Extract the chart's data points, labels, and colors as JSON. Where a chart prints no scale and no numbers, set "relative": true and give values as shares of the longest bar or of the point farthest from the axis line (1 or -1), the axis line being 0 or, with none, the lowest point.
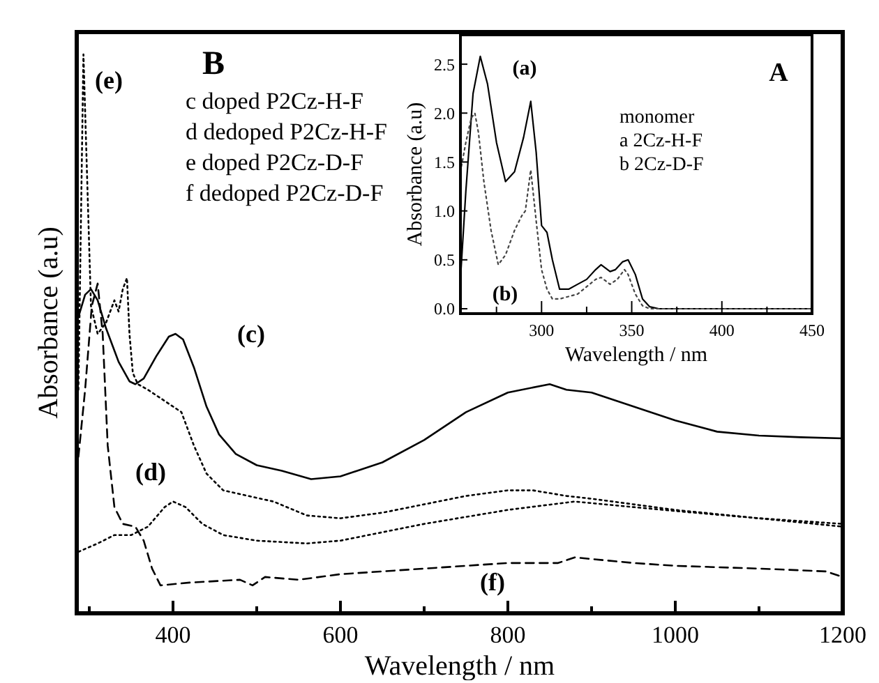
{
  "chart_data": [
    {
      "type": "line",
      "title": "B",
      "xlabel": "Wavelength / nm",
      "ylabel": "Absorbance (a.u)",
      "relative": true,
      "xlim": [
        285,
        1200
      ],
      "xticks": [
        {
          "value": 300,
          "label": null
        },
        400,
        {
          "value": 500,
          "label": null
        },
        600,
        {
          "value": 700,
          "label": null
        },
        800,
        {
          "value": 900,
          "label": null
        },
        1000,
        {
          "value": 1100,
          "label": null
        },
        1200
      ],
      "annotations": [
        "c doped P2Cz-H-F",
        "d dedoped P2Cz-H-F",
        "e doped P2Cz-D-F",
        "f dedoped P2Cz-D-F",
        "(c)",
        "(d)",
        "(e)",
        "(f)"
      ],
      "series": [
        {
          "color": "#000000",
          "line_style": "solid",
          "x": [
            287,
            295,
            302,
            310,
            320,
            335,
            348,
            355,
            365,
            380,
            395,
            403,
            412,
            425,
            440,
            455,
            475,
            500,
            530,
            565,
            600,
            650,
            700,
            750,
            800,
            850,
            870,
            900,
            950,
            1000,
            1050,
            1100,
            1150,
            1200
          ],
          "values": [
            0.53,
            0.57,
            0.58,
            0.56,
            0.51,
            0.45,
            0.415,
            0.41,
            0.42,
            0.46,
            0.495,
            0.5,
            0.49,
            0.44,
            0.37,
            0.32,
            0.285,
            0.265,
            0.255,
            0.24,
            0.245,
            0.27,
            0.31,
            0.36,
            0.395,
            0.41,
            0.4,
            0.395,
            0.37,
            0.345,
            0.325,
            0.318,
            0.315,
            0.313
          ]
        },
        {
          "color": "#000000",
          "line_style": "dotted",
          "x": [
            287,
            310,
            330,
            350,
            370,
            390,
            400,
            415,
            435,
            460,
            500,
            560,
            600,
            700,
            800,
            880,
            950,
            1000,
            1100,
            1200
          ],
          "values": [
            0.11,
            0.125,
            0.14,
            0.14,
            0.155,
            0.19,
            0.2,
            0.19,
            0.16,
            0.14,
            0.13,
            0.125,
            0.13,
            0.16,
            0.185,
            0.2,
            0.19,
            0.183,
            0.17,
            0.16
          ]
        },
        {
          "color": "#000000",
          "line_style": "dotted",
          "x": [
            287,
            290,
            293,
            297,
            302,
            310,
            320,
            330,
            335,
            340,
            345,
            348,
            352,
            358,
            370,
            390,
            410,
            425,
            440,
            460,
            490,
            520,
            560,
            600,
            650,
            700,
            750,
            800,
            830,
            870,
            900,
            1000,
            1100,
            1200
          ],
          "values": [
            0.4,
            0.7,
            1.0,
            0.8,
            0.55,
            0.5,
            0.52,
            0.56,
            0.54,
            0.58,
            0.6,
            0.5,
            0.43,
            0.41,
            0.4,
            0.38,
            0.36,
            0.3,
            0.25,
            0.22,
            0.21,
            0.2,
            0.175,
            0.17,
            0.18,
            0.195,
            0.21,
            0.22,
            0.22,
            0.21,
            0.205,
            0.185,
            0.17,
            0.155
          ]
        },
        {
          "color": "#000000",
          "line_style": "dashed",
          "x": [
            287,
            295,
            303,
            310,
            316,
            322,
            330,
            340,
            355,
            365,
            375,
            385,
            420,
            480,
            495,
            510,
            550,
            600,
            700,
            800,
            860,
            880,
            950,
            1000,
            1100,
            1180,
            1200
          ],
          "values": [
            0.28,
            0.4,
            0.55,
            0.59,
            0.5,
            0.3,
            0.19,
            0.16,
            0.155,
            0.13,
            0.08,
            0.05,
            0.055,
            0.06,
            0.05,
            0.065,
            0.06,
            0.07,
            0.08,
            0.09,
            0.09,
            0.1,
            0.09,
            0.085,
            0.08,
            0.075,
            0.065
          ]
        }
      ]
    },
    {
      "type": "line",
      "title": "A",
      "xlabel": "Wavelength / nm",
      "ylabel": "Absorbance (a.u)",
      "xlim": [
        255,
        450
      ],
      "ylim": [
        -0.05,
        2.8
      ],
      "xticks": [
        {
          "value": 275,
          "label": null
        },
        300,
        {
          "value": 325,
          "label": null
        },
        350,
        {
          "value": 375,
          "label": null
        },
        400,
        {
          "value": 425,
          "label": null
        },
        450
      ],
      "yticks": [
        {
          "value": 0,
          "label": "0.0"
        },
        {
          "value": 0.5,
          "label": "0.5"
        },
        {
          "value": 1,
          "label": "1.0"
        },
        {
          "value": 1.5,
          "label": "1.5"
        },
        {
          "value": 2,
          "label": "2.0"
        },
        {
          "value": 2.5,
          "label": "2.5"
        }
      ],
      "annotations": [
        "monomer",
        "a 2Cz-H-F",
        "b 2Cz-D-F",
        "(a)",
        "(b)"
      ],
      "series": [
        {
          "color": "#000000",
          "line_style": "solid",
          "x": [
            255,
            258,
            262,
            266,
            270,
            275,
            280,
            285,
            290,
            294,
            297,
            300,
            303,
            306,
            310,
            315,
            320,
            325,
            330,
            333,
            338,
            341,
            345,
            348,
            352,
            356,
            360,
            365,
            450
          ],
          "values": [
            0.3,
            1.2,
            2.2,
            2.58,
            2.3,
            1.7,
            1.3,
            1.4,
            1.75,
            2.12,
            1.6,
            0.85,
            0.78,
            0.5,
            0.2,
            0.2,
            0.25,
            0.3,
            0.4,
            0.45,
            0.38,
            0.4,
            0.48,
            0.5,
            0.35,
            0.1,
            0.02,
            0,
            0
          ]
        },
        {
          "color": "#444444",
          "line_style": "dotted",
          "x": [
            255,
            258,
            261,
            263,
            265,
            268,
            272,
            276,
            280,
            285,
            289,
            291,
            294,
            297,
            300,
            303,
            306,
            310,
            320,
            330,
            333,
            338,
            342,
            346,
            348,
            352,
            356,
            360,
            450
          ],
          "values": [
            1.4,
            1.7,
            1.95,
            2.0,
            1.8,
            1.3,
            0.8,
            0.45,
            0.55,
            0.8,
            0.95,
            1.0,
            1.42,
            0.9,
            0.4,
            0.2,
            0.1,
            0.1,
            0.15,
            0.3,
            0.32,
            0.25,
            0.3,
            0.4,
            0.35,
            0.15,
            0.03,
            0,
            0
          ]
        }
      ]
    }
  ]
}
